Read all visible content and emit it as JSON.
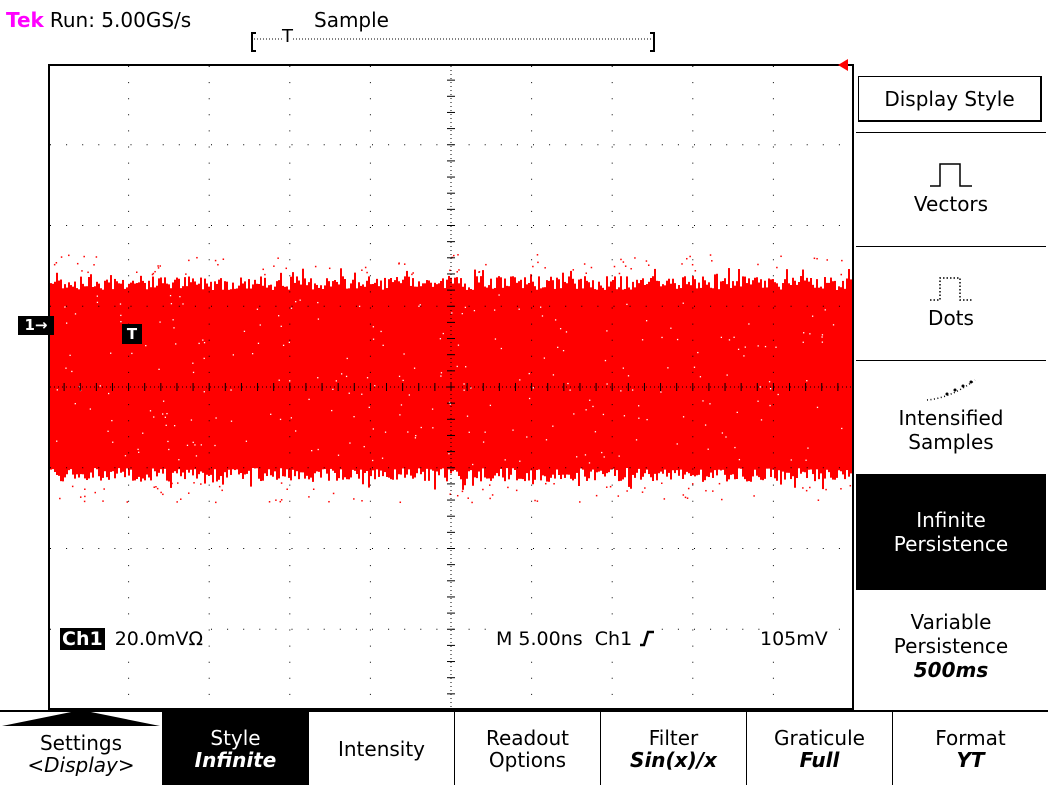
{
  "status": {
    "brand": "Tek",
    "run": "Run: 5.00GS/s",
    "acq_mode": "Sample",
    "trigger_pos_label": "T"
  },
  "markers": {
    "channel": "1→",
    "trigger": "T"
  },
  "readout": {
    "channel_label": "Ch1",
    "volts_per_div": "20.0mVΩ",
    "timebase": "M 5.00ns",
    "trigger_source": "Ch1",
    "trigger_slope": "∰",
    "trigger_level": "105mV"
  },
  "side_menu": {
    "title": "Display Style",
    "items": [
      {
        "label": "Vectors",
        "icon": "vectors-icon"
      },
      {
        "label": "Dots",
        "icon": "dots-icon"
      },
      {
        "label": "Intensified",
        "label2": "Samples",
        "icon": "intensified-samples-icon"
      },
      {
        "label": "Infinite",
        "label2": "Persistence",
        "selected": true
      },
      {
        "label": "Variable",
        "label2": "Persistence",
        "value": "500ms"
      }
    ]
  },
  "bottom_menu": [
    {
      "label": "Settings",
      "value": "<Display>",
      "icon": "up-arrow-icon"
    },
    {
      "label": "Style",
      "value": "Infinite",
      "selected": true
    },
    {
      "label": "Intensity"
    },
    {
      "label": "Readout",
      "value2": "Options"
    },
    {
      "label": "Filter",
      "value": "Sin(x)/x"
    },
    {
      "label": "Graticule",
      "value": "Full"
    },
    {
      "label": "Format",
      "value": "YT"
    }
  ],
  "colors": {
    "trace": "#ff0000",
    "brand": "#ff00ff",
    "selected_bg": "#000000"
  }
}
